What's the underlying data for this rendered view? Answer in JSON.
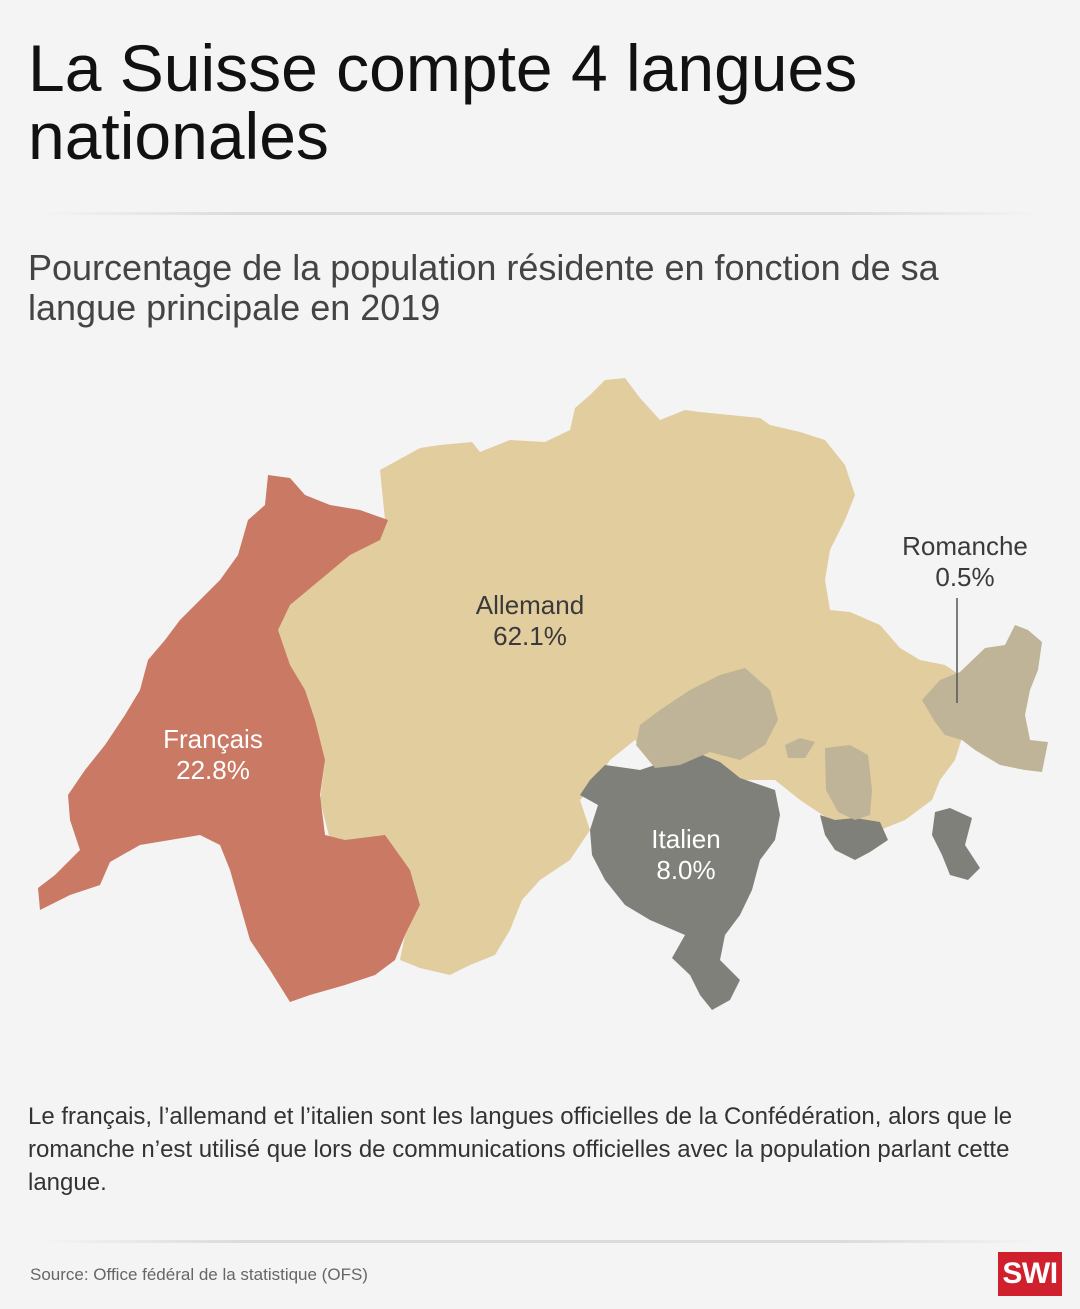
{
  "title": "La Suisse compte 4 langues nationales",
  "subtitle": "Pourcentage de la population résidente en fonction de sa langue principale en 2019",
  "regions": [
    {
      "name": "Allemand",
      "value": "62.1%",
      "color": "#e2cd9f"
    },
    {
      "name": "Français",
      "value": "22.8%",
      "color": "#c97964"
    },
    {
      "name": "Italien",
      "value": "8.0%",
      "color": "#7f807a"
    },
    {
      "name": "Romanche",
      "value": "0.5%",
      "color": "#bfb398"
    }
  ],
  "note": "Le français, l’allemand et l’italien sont les langues officielles de la Confédération, alors que le romanche n’est utilisé que lors de communications officielles avec la population parlant cette langue.",
  "source": "Source: Office fédéral de la statistique (OFS)",
  "logo": "SWI"
}
